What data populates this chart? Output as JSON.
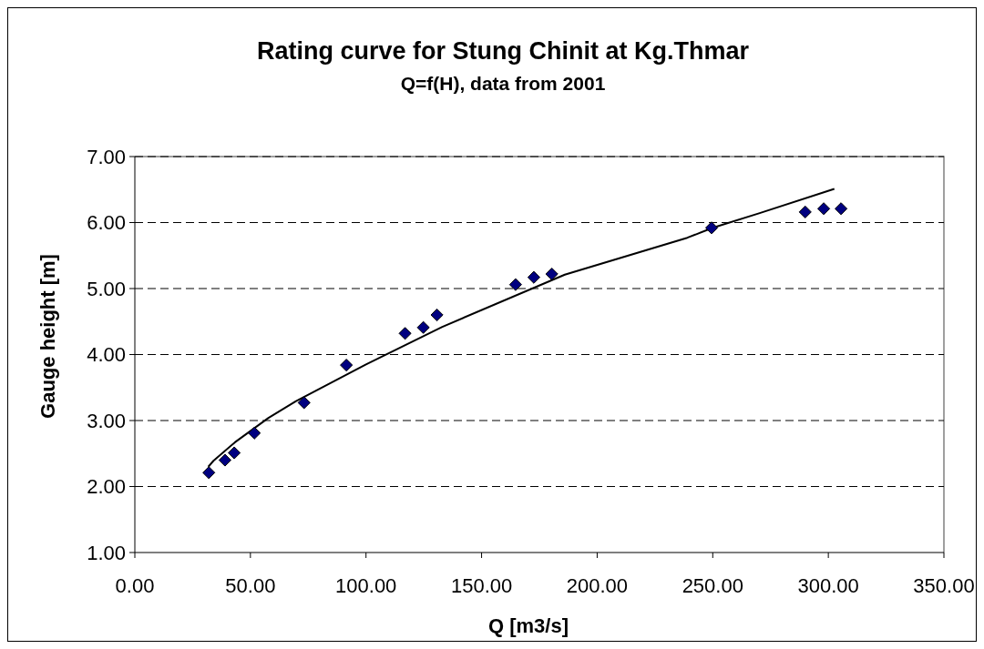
{
  "chart_data": {
    "type": "scatter",
    "title": "Rating curve for Stung Chinit at Kg.Thmar",
    "subtitle": "Q=f(H), data from 2001",
    "xlabel": "Q [m3/s]",
    "ylabel": "Gauge height [m]",
    "xlim": [
      0,
      350
    ],
    "xticks": [
      {
        "value": 0,
        "label": "0.00"
      },
      {
        "value": 50,
        "label": "50.00"
      },
      {
        "value": 100,
        "label": "100.00"
      },
      {
        "value": 150,
        "label": "150.00"
      },
      {
        "value": 200,
        "label": "200.00"
      },
      {
        "value": 250,
        "label": "250.00"
      },
      {
        "value": 300,
        "label": "300.00"
      },
      {
        "value": 350,
        "label": "350.00"
      }
    ],
    "ylim": [
      1,
      7
    ],
    "yticks": [
      {
        "value": 1,
        "label": "1.00"
      },
      {
        "value": 2,
        "label": "2.00"
      },
      {
        "value": 3,
        "label": "3.00"
      },
      {
        "value": 4,
        "label": "4.00"
      },
      {
        "value": 5,
        "label": "5.00"
      },
      {
        "value": 6,
        "label": "6.00"
      },
      {
        "value": 7,
        "label": "7.00"
      }
    ],
    "grid": "y",
    "series": [
      {
        "color": "#000080",
        "marker": "diamond",
        "x": [
          32,
          39,
          43,
          51.7,
          73.2,
          91.5,
          116.9,
          124.8,
          130.7,
          164.7,
          172.6,
          180.4,
          249.5,
          290,
          298,
          305.5
        ],
        "values": [
          2.21,
          2.4,
          2.51,
          2.81,
          3.27,
          3.84,
          4.32,
          4.41,
          4.6,
          5.06,
          5.17,
          5.22,
          5.92,
          6.16,
          6.21,
          6.21
        ]
      },
      {
        "type": "line",
        "color": "#000000",
        "marker": "none",
        "line_style": "solid",
        "x": [
          31.8,
          34,
          43.3,
          57.8,
          69.6,
          100,
          133,
          186,
          239,
          250,
          270,
          302.6
        ],
        "values": [
          2.3,
          2.39,
          2.67,
          3.04,
          3.29,
          3.85,
          4.42,
          5.21,
          5.77,
          5.92,
          6.14,
          6.51
        ]
      }
    ]
  }
}
